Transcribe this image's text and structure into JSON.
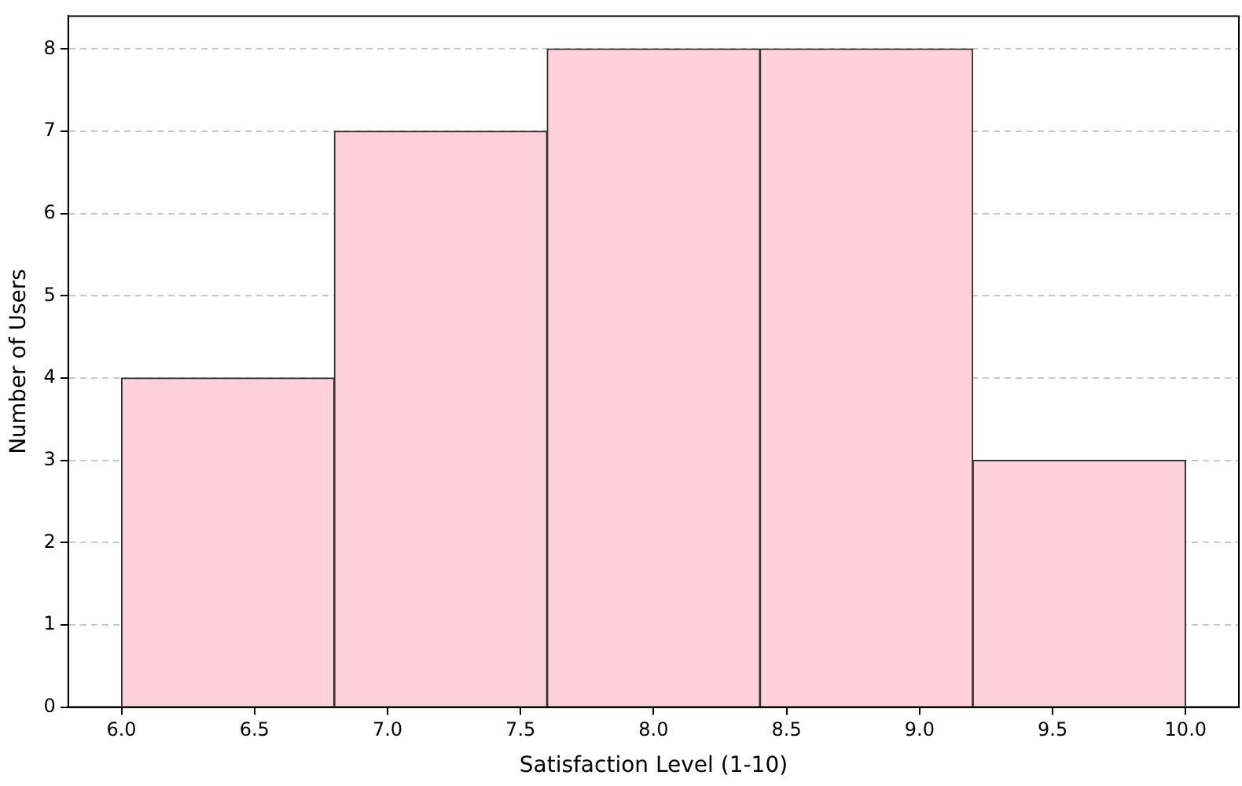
{
  "chart_data": {
    "type": "histogram",
    "xlabel": "Satisfaction Level (1-10)",
    "ylabel": "Number of Users",
    "bins": [
      6.0,
      6.8,
      7.6,
      8.4,
      9.2,
      10.0
    ],
    "values": [
      4,
      7,
      8,
      8,
      3
    ],
    "color": "#ffd1dc",
    "xlim": [
      5.8,
      10.2
    ],
    "xticks": [
      {
        "value": 6,
        "label": "6.0"
      },
      {
        "value": 6.5,
        "label": "6.5"
      },
      {
        "value": 7,
        "label": "7.0"
      },
      {
        "value": 7.5,
        "label": "7.5"
      },
      {
        "value": 8,
        "label": "8.0"
      },
      {
        "value": 8.5,
        "label": "8.5"
      },
      {
        "value": 9,
        "label": "9.0"
      },
      {
        "value": 9.5,
        "label": "9.5"
      },
      {
        "value": 10,
        "label": "10.0"
      }
    ],
    "ylim": [
      0,
      8.4
    ],
    "yticks": [
      0,
      1,
      2,
      3,
      4,
      5,
      6,
      7,
      8
    ],
    "grid": "y",
    "legend": false
  }
}
